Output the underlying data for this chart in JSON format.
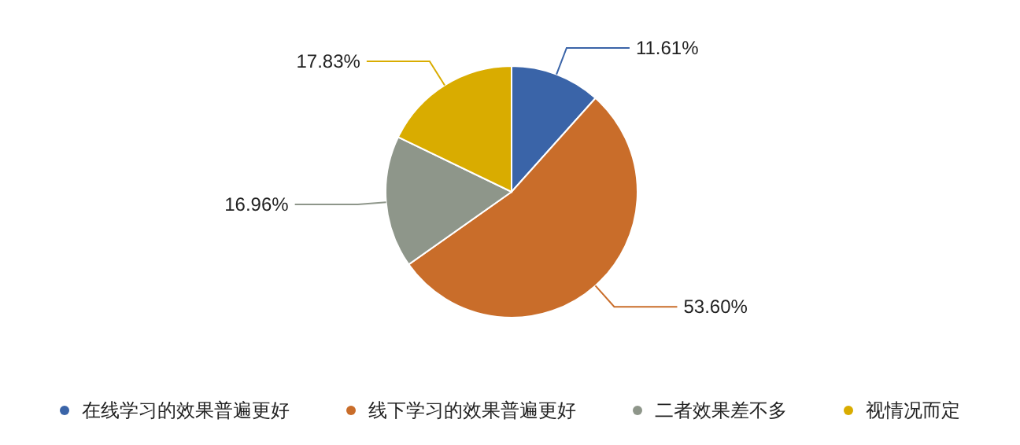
{
  "chart_data": {
    "type": "pie",
    "categories": [
      "在线学习的效果普遍更好",
      "线下学习的效果普遍更好",
      "二者效果差不多",
      "视情况而定"
    ],
    "values": [
      11.61,
      53.6,
      16.96,
      17.83
    ],
    "value_labels": [
      "11.61%",
      "53.60%",
      "16.96%",
      "17.83%"
    ],
    "colors": [
      "#3a64a8",
      "#c96d2a",
      "#8e968a",
      "#d9ac00"
    ],
    "legend": "bottom"
  }
}
